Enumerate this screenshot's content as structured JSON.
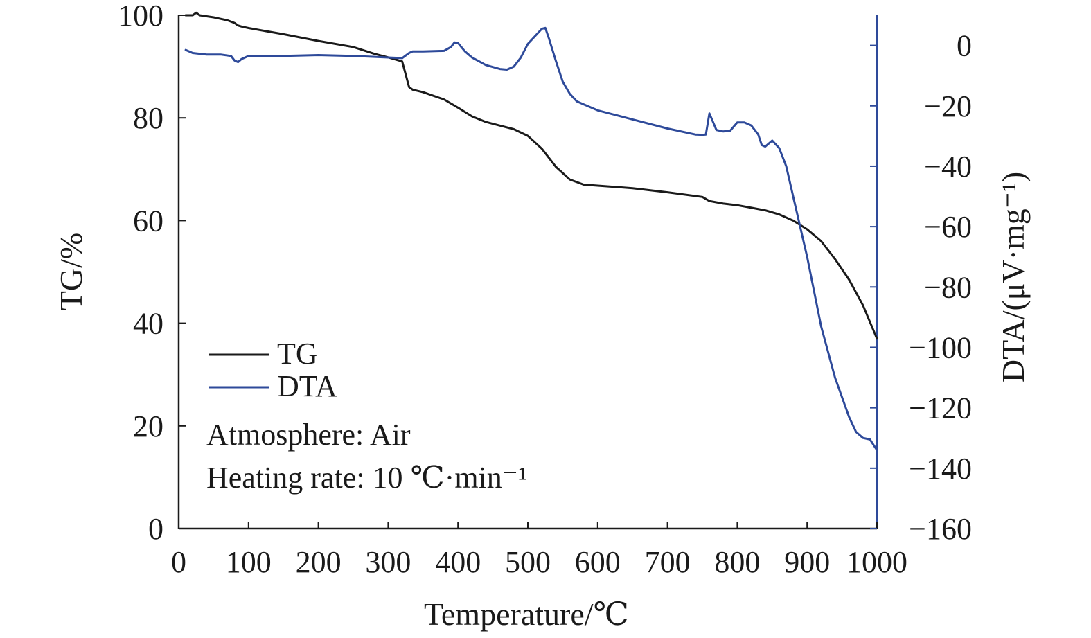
{
  "chart_data": {
    "type": "line",
    "xlabel": "Temperature/℃",
    "ylabel_left": "TG/%",
    "ylabel_right": "DTA/(μV·mg⁻¹)",
    "xlim": [
      0,
      1000
    ],
    "ylim_left": [
      0,
      100
    ],
    "ylim_right": [
      -160,
      10
    ],
    "x_ticks": [
      0,
      100,
      200,
      300,
      400,
      500,
      600,
      700,
      800,
      900,
      1000
    ],
    "y_left_ticks": [
      0,
      20,
      40,
      60,
      80,
      100
    ],
    "y_right_ticks": [
      0,
      -20,
      -40,
      -60,
      -80,
      -100,
      -120,
      -140,
      -160
    ],
    "x_tick_labels": [
      "0",
      "100",
      "200",
      "300",
      "400",
      "500",
      "600",
      "700",
      "800",
      "900",
      "1000"
    ],
    "y_left_tick_labels": [
      "0",
      "20",
      "40",
      "60",
      "80",
      "100"
    ],
    "y_right_tick_labels": [
      "0",
      "−20",
      "−40",
      "−60",
      "−80",
      "−100",
      "−120",
      "−140",
      "−160"
    ],
    "colors": {
      "TG": "#1a1a1a",
      "DTA": "#2e4a9a"
    },
    "legend_position": "lower-left",
    "grid": false,
    "series": [
      {
        "name": "TG",
        "axis": "left",
        "x": [
          10,
          20,
          25,
          30,
          50,
          60,
          70,
          80,
          85,
          90,
          100,
          150,
          200,
          250,
          280,
          300,
          320,
          325,
          330,
          335,
          350,
          380,
          400,
          420,
          440,
          460,
          480,
          500,
          520,
          540,
          560,
          580,
          600,
          650,
          700,
          750,
          760,
          780,
          800,
          820,
          840,
          860,
          880,
          900,
          920,
          940,
          960,
          980,
          1000
        ],
        "y": [
          100,
          100,
          100.5,
          100,
          99.6,
          99.3,
          99,
          98.5,
          98,
          97.8,
          97.5,
          96.3,
          95,
          93.8,
          92.5,
          91.8,
          91,
          88.5,
          86,
          85.5,
          85,
          83.6,
          82,
          80.3,
          79.2,
          78.5,
          77.8,
          76.5,
          74,
          70.5,
          68,
          67,
          66.8,
          66.3,
          65.5,
          64.6,
          63.8,
          63.3,
          63,
          62.5,
          62,
          61.2,
          60,
          58.3,
          56,
          52.5,
          48.5,
          43.5,
          37
        ]
      },
      {
        "name": "DTA",
        "axis": "right",
        "x": [
          10,
          20,
          40,
          60,
          75,
          80,
          85,
          90,
          95,
          100,
          150,
          200,
          250,
          300,
          320,
          330,
          335,
          350,
          380,
          390,
          395,
          400,
          410,
          420,
          440,
          460,
          470,
          480,
          490,
          500,
          510,
          520,
          525,
          530,
          540,
          550,
          560,
          570,
          580,
          600,
          650,
          700,
          740,
          750,
          755,
          760,
          770,
          780,
          790,
          800,
          810,
          820,
          830,
          835,
          840,
          850,
          860,
          870,
          880,
          900,
          920,
          940,
          960,
          970,
          980,
          990,
          1000
        ],
        "y": [
          -1.5,
          -2.5,
          -3,
          -3,
          -3.5,
          -5,
          -5.5,
          -4.5,
          -4,
          -3.5,
          -3.5,
          -3.2,
          -3.5,
          -4,
          -4.2,
          -2.5,
          -2,
          -2,
          -1.8,
          -0.5,
          1,
          0.8,
          -2,
          -4,
          -6.5,
          -7.8,
          -8,
          -7,
          -4,
          0.5,
          3,
          5.5,
          5.8,
          2.5,
          -5,
          -12,
          -16,
          -18.5,
          -19.5,
          -21.5,
          -24.5,
          -27.5,
          -29.5,
          -29.6,
          -29.5,
          -22.5,
          -28,
          -28.5,
          -28.2,
          -25.5,
          -25.5,
          -26.5,
          -29.5,
          -33,
          -33.5,
          -31.5,
          -34,
          -40,
          -50,
          -70,
          -93,
          -110,
          -123,
          -128,
          -130,
          -130.5,
          -134
        ]
      }
    ],
    "annotations": [
      "Atmosphere: Air",
      "Heating rate: 10 ℃·min⁻¹"
    ]
  }
}
